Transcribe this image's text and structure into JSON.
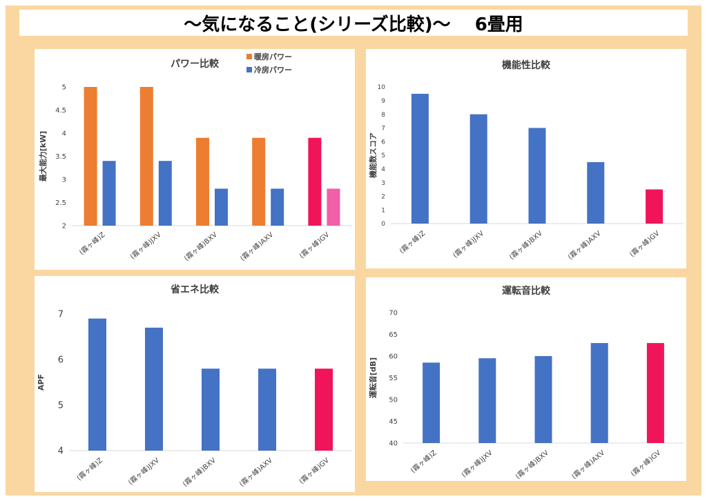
{
  "header": {
    "title": "〜気になること(シリーズ比較)〜　 6畳用"
  },
  "chart_data": [
    {
      "type": "bar",
      "title": "パワー比較",
      "ylabel": "最大能力[kW]",
      "categories": [
        "(霧ヶ峰)Z",
        "(霧ヶ峰)JXV",
        "(霧ヶ峰)BXV",
        "(霧ヶ峰)AXV",
        "(霧ヶ峰)GV"
      ],
      "series": [
        {
          "name": "暖房パワー",
          "values": [
            5,
            5,
            3.9,
            3.9,
            3.9
          ],
          "color": "#ed7d31"
        },
        {
          "name": "冷房パワー",
          "values": [
            3.4,
            3.4,
            2.8,
            2.8,
            2.8
          ],
          "color": "#4472c4"
        }
      ],
      "highlight": {
        "category": "(霧ヶ峰)GV",
        "colors": [
          "#f0145a",
          "#f25ea8"
        ]
      },
      "yticks": [
        "2",
        "2.5",
        "3",
        "3.5",
        "4",
        "4.5",
        "5"
      ],
      "ylim": [
        2,
        5
      ],
      "legend": "top-right"
    },
    {
      "type": "bar",
      "title": "機能性比較",
      "ylabel": "機能数スコア",
      "categories": [
        "(霧ヶ峰)Z",
        "(霧ヶ峰)JXV",
        "(霧ヶ峰)BXV",
        "(霧ヶ峰)AXV",
        "(霧ヶ峰)GV"
      ],
      "values": [
        9.5,
        8,
        7,
        4.5,
        2.5
      ],
      "color": "#4472c4",
      "highlight": {
        "category": "(霧ヶ峰)GV",
        "color": "#f0145a"
      },
      "yticks": [
        "0",
        "1",
        "2",
        "3",
        "4",
        "5",
        "6",
        "7",
        "8",
        "9",
        "10"
      ],
      "ylim": [
        0,
        10
      ]
    },
    {
      "type": "bar",
      "title": "省エネ比較",
      "ylabel": "APF",
      "categories": [
        "(霧ヶ峰)Z",
        "(霧ヶ峰)JXV",
        "(霧ヶ峰)BXV",
        "(霧ヶ峰)AXV",
        "(霧ヶ峰)GV"
      ],
      "values": [
        6.9,
        6.7,
        5.8,
        5.8,
        5.8
      ],
      "color": "#4472c4",
      "highlight": {
        "category": "(霧ヶ峰)GV",
        "color": "#f0145a"
      },
      "yticks": [
        "4",
        "5",
        "6",
        "7"
      ],
      "ylim": [
        4,
        7
      ]
    },
    {
      "type": "bar",
      "title": "運転音比較",
      "ylabel": "運転音[dB]",
      "categories": [
        "(霧ヶ峰)Z",
        "(霧ヶ峰)JXV",
        "(霧ヶ峰)BXV",
        "(霧ヶ峰)AXV",
        "(霧ヶ峰)GV"
      ],
      "values": [
        58.5,
        59.5,
        60,
        63,
        63
      ],
      "color": "#4472c4",
      "highlight": {
        "category": "(霧ヶ峰)GV",
        "color": "#f0145a"
      },
      "yticks": [
        "40",
        "45",
        "50",
        "55",
        "60",
        "65",
        "70"
      ],
      "ylim": [
        40,
        70
      ]
    }
  ]
}
